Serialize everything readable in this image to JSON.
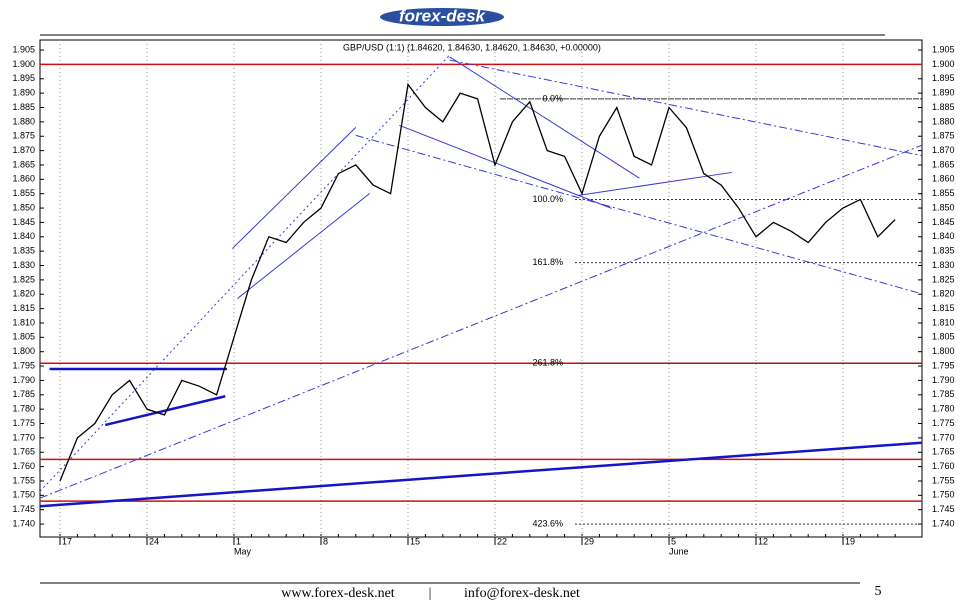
{
  "header": {
    "logo": "forex-desk"
  },
  "footer": {
    "site": "www.forex-desk.net",
    "separator": "|",
    "email": "info@forex-desk.net",
    "page": "5"
  },
  "chart_data": {
    "type": "line",
    "title": "GBP/USD (1:1) (1.84620, 1.84630, 1.84620, 1.84630, +0.00000)",
    "categories": [
      "17",
      null,
      null,
      null,
      null,
      "24",
      null,
      null,
      null,
      null,
      "1",
      null,
      null,
      null,
      null,
      "8",
      null,
      null,
      null,
      null,
      "15",
      null,
      null,
      null,
      null,
      "22",
      null,
      null,
      null,
      null,
      "29",
      null,
      null,
      null,
      null,
      "5",
      null,
      null,
      null,
      null,
      "12",
      null,
      null,
      null,
      null,
      "19",
      null,
      null,
      null
    ],
    "month_labels": [
      "May",
      "June"
    ],
    "values": [
      1.755,
      1.77,
      1.775,
      1.785,
      1.79,
      1.78,
      1.778,
      1.79,
      1.788,
      1.785,
      1.805,
      1.825,
      1.84,
      1.838,
      1.845,
      1.85,
      1.862,
      1.865,
      1.858,
      1.855,
      1.893,
      1.885,
      1.88,
      1.89,
      1.888,
      1.865,
      1.88,
      1.887,
      1.87,
      1.868,
      1.855,
      1.875,
      1.885,
      1.868,
      1.865,
      1.885,
      1.878,
      1.862,
      1.858,
      1.85,
      1.84,
      1.845,
      1.842,
      1.838,
      1.845,
      1.85,
      1.853,
      1.84,
      1.846
    ],
    "color": "#000000",
    "ylim": [
      1.7355,
      1.9085
    ],
    "yticks": [
      {
        "value": 1.74,
        "label": "1.740"
      },
      {
        "value": 1.745,
        "label": "1.745"
      },
      {
        "value": 1.75,
        "label": "1.750"
      },
      {
        "value": 1.755,
        "label": "1.755"
      },
      {
        "value": 1.76,
        "label": "1.760"
      },
      {
        "value": 1.765,
        "label": "1.765"
      },
      {
        "value": 1.77,
        "label": "1.770"
      },
      {
        "value": 1.775,
        "label": "1.775"
      },
      {
        "value": 1.78,
        "label": "1.780"
      },
      {
        "value": 1.785,
        "label": "1.785"
      },
      {
        "value": 1.79,
        "label": "1.790"
      },
      {
        "value": 1.795,
        "label": "1.795"
      },
      {
        "value": 1.8,
        "label": "1.800"
      },
      {
        "value": 1.805,
        "label": "1.805"
      },
      {
        "value": 1.81,
        "label": "1.810"
      },
      {
        "value": 1.815,
        "label": "1.815"
      },
      {
        "value": 1.82,
        "label": "1.820"
      },
      {
        "value": 1.825,
        "label": "1.825"
      },
      {
        "value": 1.83,
        "label": "1.830"
      },
      {
        "value": 1.835,
        "label": "1.835"
      },
      {
        "value": 1.84,
        "label": "1.840"
      },
      {
        "value": 1.845,
        "label": "1.845"
      },
      {
        "value": 1.85,
        "label": "1.850"
      },
      {
        "value": 1.855,
        "label": "1.855"
      },
      {
        "value": 1.86,
        "label": "1.860"
      },
      {
        "value": 1.865,
        "label": "1.865"
      },
      {
        "value": 1.87,
        "label": "1.870"
      },
      {
        "value": 1.875,
        "label": "1.875"
      },
      {
        "value": 1.88,
        "label": "1.880"
      },
      {
        "value": 1.885,
        "label": "1.885"
      },
      {
        "value": 1.89,
        "label": "1.890"
      },
      {
        "value": 1.895,
        "label": "1.895"
      },
      {
        "value": 1.9,
        "label": "1.900"
      },
      {
        "value": 1.905,
        "label": "1.905"
      }
    ],
    "grid": "x",
    "levels": {
      "color": "#d01010",
      "values": [
        1.9,
        1.796,
        1.7625,
        1.748
      ]
    },
    "fib_levels": [
      {
        "value": 1.888,
        "label": "0.0%"
      },
      {
        "value": 1.853,
        "label": "100.0%"
      },
      {
        "value": 1.831,
        "label": "161.8%"
      },
      {
        "value": 1.796,
        "label": "261.8%"
      },
      {
        "value": 1.74,
        "label": "423.6%"
      }
    ],
    "trend_lines": [
      {
        "x": [
          -0.6,
          9.6
        ],
        "y": [
          1.794,
          1.794
        ],
        "color": "#1515c8",
        "style": "thick"
      },
      {
        "x": [
          2.6,
          9.5
        ],
        "y": [
          1.7745,
          1.7845
        ],
        "color": "#1515c8",
        "style": "thick"
      },
      {
        "x": [
          -1.15,
          49.5
        ],
        "y": [
          1.7462,
          1.7683
        ],
        "color": "#1515c8",
        "style": "thick"
      },
      {
        "x": [
          9.9,
          17.0
        ],
        "y": [
          1.8359,
          1.8781
        ],
        "color": "#3a3ad0",
        "style": "solid"
      },
      {
        "x": [
          10.2,
          17.8
        ],
        "y": [
          1.8185,
          1.8551
        ],
        "color": "#3a3ad0",
        "style": "solid"
      },
      {
        "x": [
          19.5,
          31.7
        ],
        "y": [
          1.8788,
          1.8499
        ],
        "color": "#3a3ad0",
        "style": "solid"
      },
      {
        "x": [
          22.4,
          33.3
        ],
        "y": [
          1.9026,
          1.8604
        ],
        "color": "#3a3ad0",
        "style": "solid"
      },
      {
        "x": [
          29.8,
          38.6
        ],
        "y": [
          1.8544,
          1.8624
        ],
        "color": "#3a3ad0",
        "style": "solid"
      },
      {
        "x": [
          -1.15,
          49.5
        ],
        "y": [
          1.749,
          1.8718
        ],
        "color": "#3a3ad0",
        "style": "dashdot"
      },
      {
        "x": [
          17.0,
          49.5
        ],
        "y": [
          1.8753,
          1.8202
        ],
        "color": "#3a3ad0",
        "style": "dashdot"
      },
      {
        "x": [
          22.4,
          49.5
        ],
        "y": [
          1.9015,
          1.8683
        ],
        "color": "#3a3ad0",
        "style": "dashdot"
      },
      {
        "x": [
          -1.15,
          22.4
        ],
        "y": [
          1.7514,
          1.9033
        ],
        "color": "#3a3ad0",
        "style": "dotted"
      }
    ]
  }
}
